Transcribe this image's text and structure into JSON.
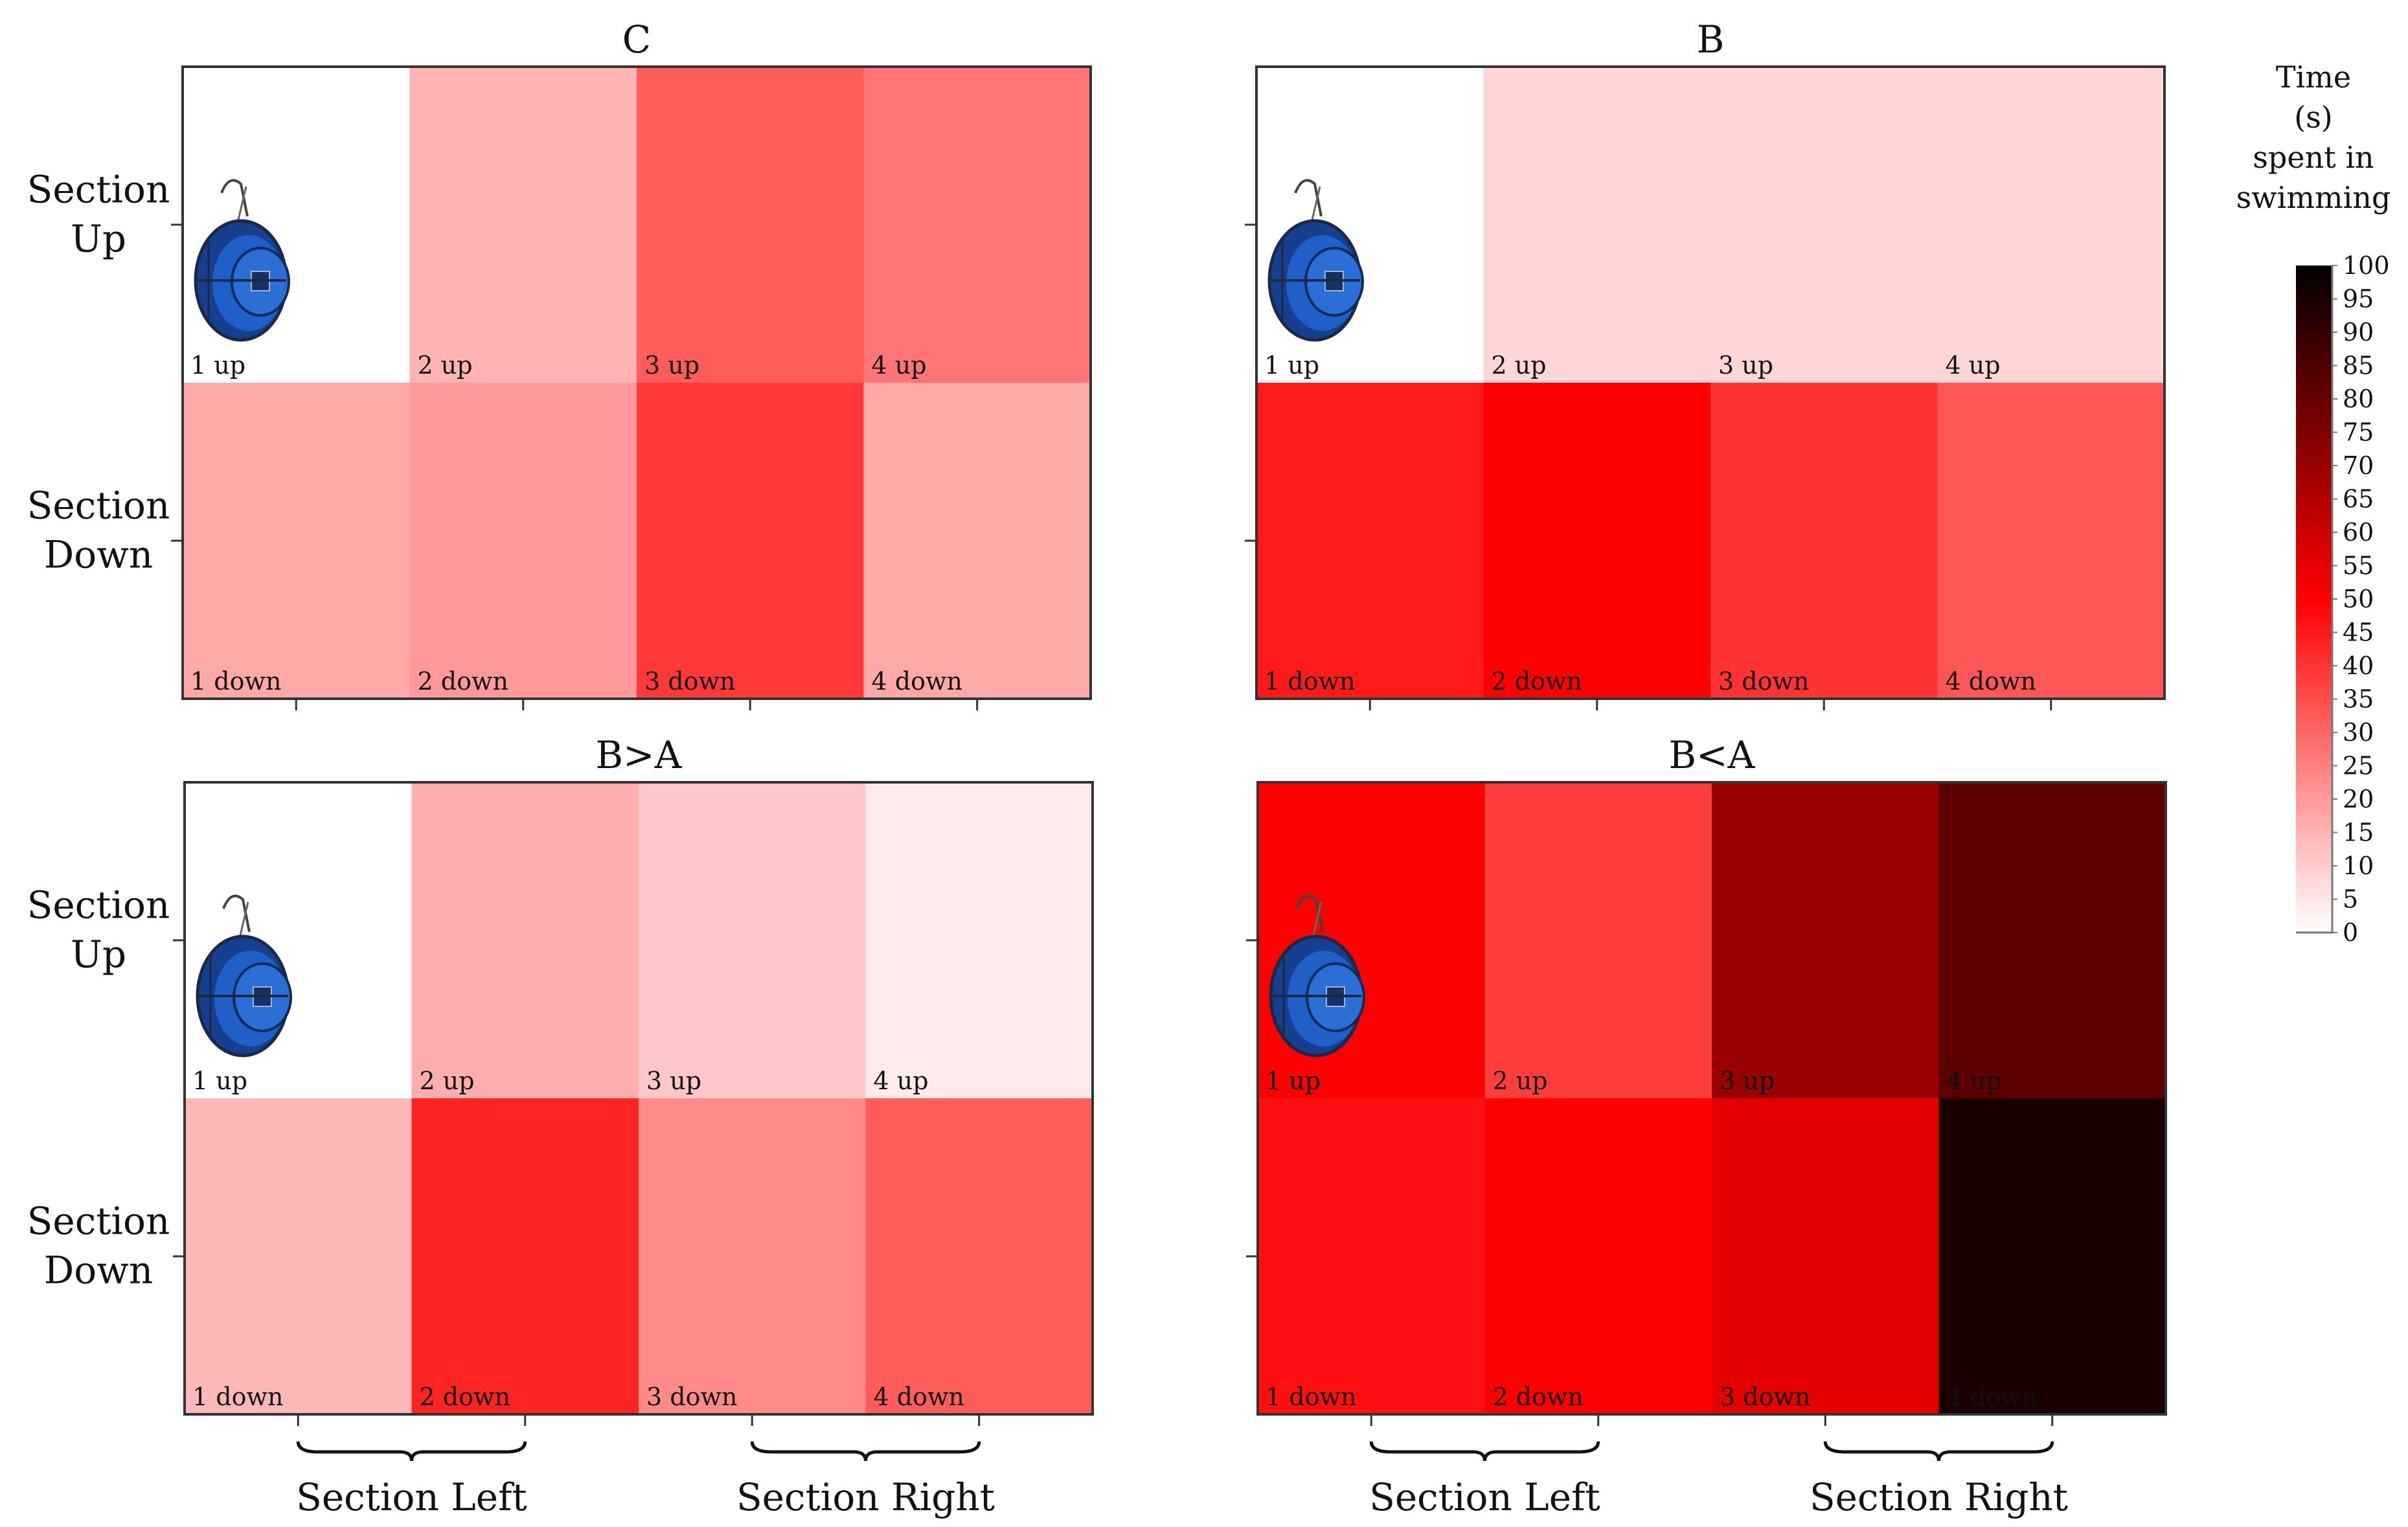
{
  "colors": {
    "low": "#ffffff",
    "mid": "#ff0000",
    "high": "#000000",
    "frame": "#333333",
    "icon_blue": "#1f5fc8"
  },
  "chart_data": [
    {
      "type": "heatmap",
      "title": "C",
      "row_labels": [
        "Section\nUp",
        "Section\nDown"
      ],
      "x_group_labels": [],
      "cell_labels": [
        [
          "1 up",
          "2 up",
          "3 up",
          "4 up"
        ],
        [
          "1 down",
          "2 down",
          "3 down",
          "4 down"
        ]
      ],
      "values": [
        [
          0,
          15,
          32,
          27
        ],
        [
          17,
          20,
          39,
          17
        ]
      ]
    },
    {
      "type": "heatmap",
      "title": "B",
      "row_labels": [
        "",
        ""
      ],
      "x_group_labels": [],
      "cell_labels": [
        [
          "1 up",
          "2 up",
          "3 up",
          "4 up"
        ],
        [
          "1 down",
          "2 down",
          "3 down",
          "4 down"
        ]
      ],
      "values": [
        [
          0,
          8,
          8,
          8
        ],
        [
          45,
          50,
          40,
          33
        ]
      ]
    },
    {
      "type": "heatmap",
      "title": "B>A",
      "row_labels": [
        "Section\nUp",
        "Section\nDown"
      ],
      "x_group_labels": [
        "Section Left",
        "Section Right"
      ],
      "cell_labels": [
        [
          "1 up",
          "2 up",
          "3 up",
          "4 up"
        ],
        [
          "1 down",
          "2 down",
          "3 down",
          "4 down"
        ]
      ],
      "values": [
        [
          0,
          16,
          11,
          4
        ],
        [
          14,
          43,
          23,
          32
        ]
      ]
    },
    {
      "type": "heatmap",
      "title": "B<A",
      "row_labels": [
        "",
        ""
      ],
      "x_group_labels": [
        "Section Left",
        "Section Right"
      ],
      "cell_labels": [
        [
          "1 up",
          "2 up",
          "3 up",
          "4 up"
        ],
        [
          "1 down",
          "2 down",
          "3 down",
          "4 down"
        ]
      ],
      "values": [
        [
          50,
          38,
          70,
          82
        ],
        [
          47,
          50,
          55,
          95
        ]
      ]
    }
  ],
  "colorbar": {
    "title": [
      "Time",
      "(s)",
      "spent in",
      "swimming"
    ],
    "min": 0,
    "max": 100,
    "ticks": [
      "100",
      "95",
      "90",
      "85",
      "80",
      "75",
      "70",
      "65",
      "60",
      "55",
      "50",
      "45",
      "40",
      "35",
      "30",
      "25",
      "20",
      "15",
      "10",
      "5",
      "0"
    ]
  }
}
